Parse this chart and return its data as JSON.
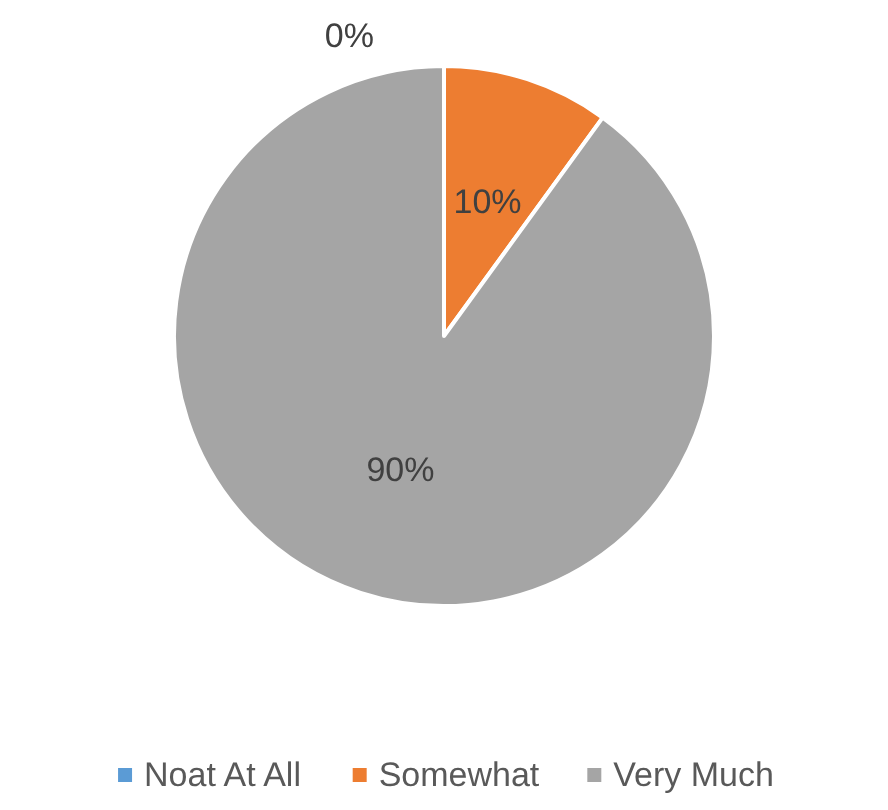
{
  "chart_data": {
    "type": "pie",
    "categories": [
      "Noat At All",
      "Somewhat",
      "Very Much"
    ],
    "values": [
      0,
      10,
      90
    ],
    "colors": [
      "#5b9bd5",
      "#ed7d31",
      "#a5a5a5"
    ],
    "value_labels": [
      "0%",
      "10%",
      "90%"
    ],
    "legend": "bottom"
  }
}
